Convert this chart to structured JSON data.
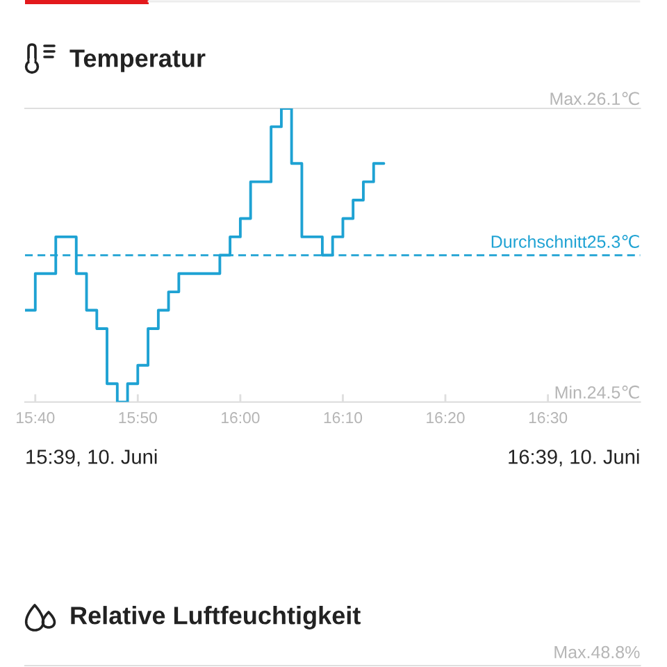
{
  "chart_data": [
    {
      "type": "step",
      "title": "Temperatur",
      "x": [
        15.65,
        15.6667,
        15.7,
        15.7333,
        15.75,
        15.7667,
        15.7833,
        15.8,
        15.8167,
        15.8333,
        15.85,
        15.8667,
        15.8833,
        15.9,
        15.9667,
        15.9833,
        16.0,
        16.0167,
        16.05,
        16.0667,
        16.0833,
        16.1,
        16.1333,
        16.15,
        16.1667,
        16.1833,
        16.2,
        16.2167,
        16.2333
      ],
      "series": [
        {
          "color": "#1ea2d3",
          "values": [
            25.0,
            25.2,
            25.4,
            25.2,
            25.0,
            24.9,
            24.6,
            24.5,
            24.6,
            24.7,
            24.9,
            25.0,
            25.1,
            25.2,
            25.3,
            25.4,
            25.5,
            25.7,
            26.0,
            26.1,
            25.8,
            25.4,
            25.3,
            25.4,
            25.5,
            25.6,
            25.7,
            25.8,
            25.8
          ]
        }
      ],
      "xlim": [
        15.65,
        16.65
      ],
      "xticks": [
        {
          "value": 15.6667,
          "label": "15:40"
        },
        {
          "value": 15.8333,
          "label": "15:50"
        },
        {
          "value": 16.0,
          "label": "16:00"
        },
        {
          "value": 16.1667,
          "label": "16:10"
        },
        {
          "value": 16.3333,
          "label": "16:20"
        },
        {
          "value": 16.5,
          "label": "16:30"
        }
      ],
      "ylim": [
        24.5,
        26.1
      ],
      "yticks": [
        {
          "value": 24.5,
          "label": "24.5℃"
        },
        {
          "value": 26.1,
          "label": "26.1℃"
        }
      ],
      "ref_lines": [
        {
          "axis": "y",
          "value": 25.3,
          "label": "Durchschnitt25.3℃",
          "color": "#1ea2d3",
          "line_style": "dashed"
        }
      ],
      "annotations": [
        "15:39, 10. Juni",
        "16:39, 10. Juni",
        "Min.",
        "Max."
      ]
    },
    {
      "type": "other",
      "title": "Relative Luftfeuchtigkeit",
      "annotations": [
        "Max.48.8%"
      ]
    }
  ]
}
